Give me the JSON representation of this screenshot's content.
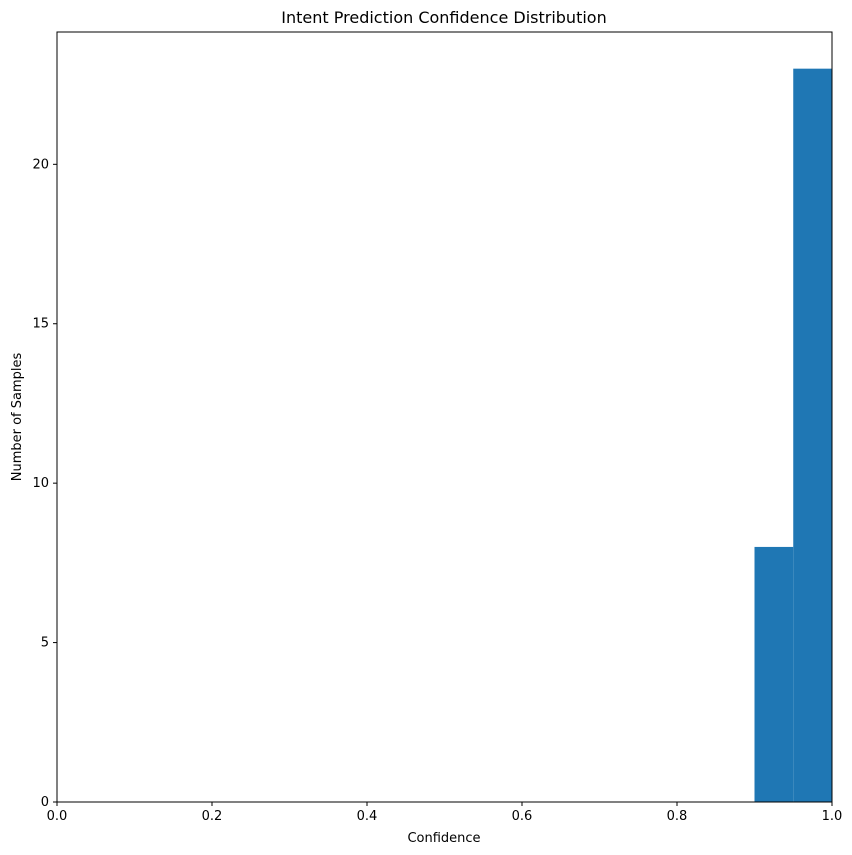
{
  "chart_data": {
    "type": "bar",
    "title": "Intent Prediction Confidence Distribution",
    "xlabel": "Confidence",
    "ylabel": "Number of Samples",
    "xlim": [
      0.0,
      1.0
    ],
    "ylim": [
      0,
      24.15
    ],
    "xticks": [
      "0.0",
      "0.2",
      "0.4",
      "0.6",
      "0.8",
      "1.0"
    ],
    "xtick_values": [
      0.0,
      0.2,
      0.4,
      0.6,
      0.8,
      1.0
    ],
    "yticks": [
      "0",
      "5",
      "10",
      "15",
      "20"
    ],
    "ytick_values": [
      0,
      5,
      10,
      15,
      20
    ],
    "bins": [
      {
        "x_start": 0.9,
        "x_end": 0.95,
        "value": 8
      },
      {
        "x_start": 0.95,
        "x_end": 1.0,
        "value": 23
      }
    ],
    "bar_color": "#1f77b4",
    "grid": false,
    "legend": null
  }
}
